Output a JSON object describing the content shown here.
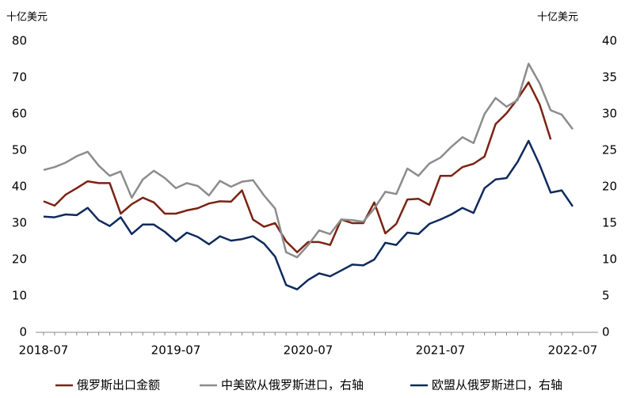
{
  "chart_data": {
    "type": "line",
    "y_label": "十亿美元",
    "y2_label": "十亿美元",
    "categories": [
      "2018-07",
      null,
      null,
      null,
      null,
      null,
      null,
      null,
      null,
      null,
      null,
      null,
      "2019-07",
      null,
      null,
      null,
      null,
      null,
      null,
      null,
      null,
      null,
      null,
      null,
      "2020-07",
      null,
      null,
      null,
      null,
      null,
      null,
      null,
      null,
      null,
      null,
      null,
      "2021-07",
      null,
      null,
      null,
      null,
      null,
      null,
      null,
      null,
      null,
      null,
      null,
      "2022-07"
    ],
    "ylim": [
      0,
      80
    ],
    "yticks": [
      0,
      10,
      20,
      30,
      40,
      50,
      60,
      70,
      80
    ],
    "y2lim": [
      0,
      40
    ],
    "y2ticks": [
      0,
      5,
      10,
      15,
      20,
      25,
      30,
      35,
      40
    ],
    "series": [
      {
        "name": "俄罗斯出口金额",
        "color": "#7b2312",
        "values": [
          36,
          34.8,
          37.8,
          39.6,
          41.5,
          41,
          41,
          32.6,
          35.2,
          37,
          35.7,
          32.6,
          32.6,
          33.5,
          34.1,
          35.4,
          36,
          35.9,
          39,
          31,
          29,
          30,
          25,
          22,
          24.8,
          24.8,
          24,
          31,
          30,
          30,
          35.7,
          27.2,
          29.8,
          36.5,
          36.7,
          35,
          43,
          43,
          45.4,
          46.3,
          48.3,
          57.2,
          60.2,
          64.1,
          68.7,
          62.6,
          53,
          null,
          null
        ]
      },
      {
        "name": "中美欧从俄罗斯进口，右轴",
        "color": "#8c8c8c",
        "axis": "y2",
        "values": [
          22.3,
          22.7,
          23.3,
          24.2,
          24.8,
          22.9,
          21.5,
          22.1,
          18.5,
          21,
          22.2,
          21.2,
          19.8,
          20.5,
          20.1,
          18.8,
          20.8,
          20,
          20.7,
          20.9,
          18.8,
          17,
          11,
          10.3,
          12,
          14,
          13.5,
          15.5,
          15.4,
          15.2,
          17,
          19.3,
          19,
          22.5,
          21.5,
          23.2,
          24,
          25.5,
          26.8,
          26,
          30,
          32.2,
          31,
          31.9,
          36.9,
          34.2,
          30.5,
          29.9,
          27.9
        ]
      },
      {
        "name": "欧盟从俄罗斯进口，右轴",
        "color": "#0f2a5c",
        "axis": "y2",
        "values": [
          15.9,
          15.8,
          16.2,
          16.1,
          17.1,
          15.4,
          14.6,
          15.8,
          13.5,
          14.8,
          14.8,
          13.8,
          12.5,
          13.7,
          13.1,
          12.1,
          13.2,
          12.6,
          12.8,
          13.2,
          12.2,
          10.4,
          6.5,
          5.9,
          7.2,
          8.1,
          7.7,
          8.5,
          9.3,
          9.2,
          10,
          12.3,
          12,
          13.7,
          13.5,
          14.9,
          15.5,
          16.2,
          17.1,
          16.4,
          19.8,
          21,
          21.2,
          23.4,
          26.3,
          23,
          19.2,
          19.5,
          17.3
        ]
      }
    ]
  }
}
